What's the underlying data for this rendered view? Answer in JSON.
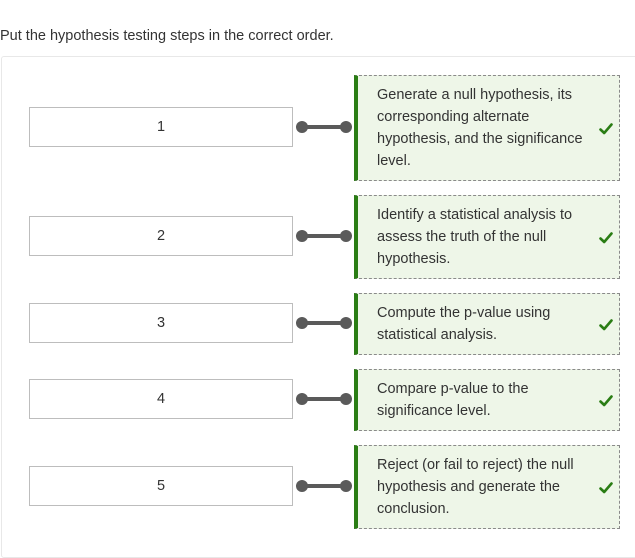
{
  "prompt": "Put the hypothesis testing steps in the correct order.",
  "rows": [
    {
      "number": "1",
      "answer": "Generate a null hypothesis, its corresponding alternate hypothesis, and the significance level.",
      "status": "correct"
    },
    {
      "number": "2",
      "answer": "Identify a statistical analysis to assess the truth of the null hypothesis.",
      "status": "correct"
    },
    {
      "number": "3",
      "answer": "Compute the p-value using statistical analysis.",
      "status": "correct"
    },
    {
      "number": "4",
      "answer": "Compare p-value to the significance level.",
      "status": "correct"
    },
    {
      "number": "5",
      "answer": "Reject (or fail to reject) the null hypothesis and generate the conclusion.",
      "status": "correct"
    }
  ],
  "icons": {
    "connector": "connector-handle-icon",
    "check": "check-icon"
  },
  "colors": {
    "card_bg": "#eef6e8",
    "accent_green": "#2a7d14",
    "connector": "#5a5a5a"
  }
}
